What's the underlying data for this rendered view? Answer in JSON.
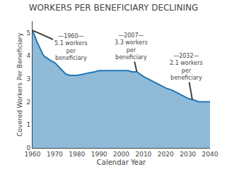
{
  "chart_data": {
    "type": "area",
    "title": "WORKERS PER BENEFICIARY DECLINING",
    "x_label": "Calendar Year",
    "y_label": "Covered Workers Per Beneficiary",
    "x": [
      1960,
      1962,
      1965,
      1968,
      1970,
      1973,
      1975,
      1977,
      1980,
      1983,
      1985,
      1988,
      1990,
      1993,
      1995,
      1998,
      2000,
      2003,
      2005,
      2007,
      2010,
      2013,
      2015,
      2018,
      2020,
      2023,
      2025,
      2028,
      2030,
      2032,
      2035,
      2038,
      2040
    ],
    "values": [
      5.1,
      4.6,
      4.0,
      3.8,
      3.7,
      3.4,
      3.2,
      3.15,
      3.15,
      3.2,
      3.25,
      3.3,
      3.35,
      3.35,
      3.35,
      3.35,
      3.35,
      3.35,
      3.3,
      3.3,
      3.1,
      2.95,
      2.85,
      2.7,
      2.6,
      2.5,
      2.4,
      2.25,
      2.15,
      2.1,
      2.0,
      2.0,
      2.0
    ],
    "xlim": [
      1960,
      2040
    ],
    "xticks": [
      1960,
      1970,
      1980,
      1990,
      2000,
      2010,
      2020,
      2030,
      2040
    ],
    "ylim": [
      0,
      5.5
    ],
    "yticks": [
      0,
      1,
      2,
      3,
      4,
      5
    ],
    "grid": false,
    "annotations": [
      {
        "text": "—1960—\n5.1 workers\nper\nbeneficiary",
        "x": 1960,
        "y": 5.1
      },
      {
        "text": "—2007—\n3.3 workers\nper\nbeneficiary",
        "x": 2007,
        "y": 3.3
      },
      {
        "text": "—2032—\n2.1 workers\nper\nbeneficiary",
        "x": 2032,
        "y": 2.1
      }
    ]
  }
}
